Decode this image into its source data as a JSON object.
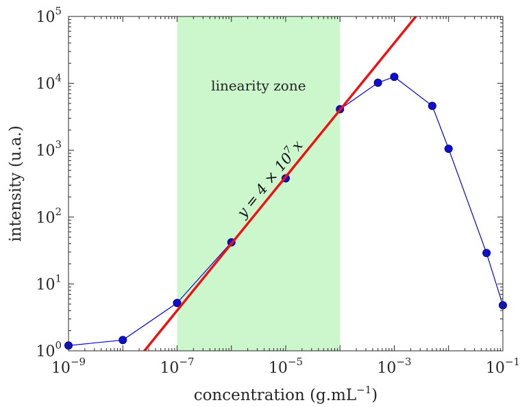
{
  "chart_data": {
    "type": "line",
    "xlabel": "concentration (g.mL",
    "xlabel_sup": "−1",
    "xlabel_end": ")",
    "ylabel": "intensity (u.a.)",
    "xscale": "log",
    "yscale": "log",
    "xlim": [
      1e-09,
      0.1
    ],
    "ylim": [
      1,
      100000
    ],
    "grid": false,
    "x_ticks": [
      {
        "value": 1e-09,
        "base": "10",
        "exp": "−9"
      },
      {
        "value": 1e-07,
        "base": "10",
        "exp": "−7"
      },
      {
        "value": 1e-05,
        "base": "10",
        "exp": "−5"
      },
      {
        "value": 0.001,
        "base": "10",
        "exp": "−3"
      },
      {
        "value": 0.1,
        "base": "10",
        "exp": "−1"
      }
    ],
    "y_ticks": [
      {
        "value": 1,
        "base": "10",
        "exp": "0"
      },
      {
        "value": 10,
        "base": "10",
        "exp": "1"
      },
      {
        "value": 100,
        "base": "10",
        "exp": "2"
      },
      {
        "value": 1000,
        "base": "10",
        "exp": "3"
      },
      {
        "value": 10000,
        "base": "10",
        "exp": "4"
      },
      {
        "value": 100000,
        "base": "10",
        "exp": "5"
      }
    ],
    "shaded_region": {
      "x_range": [
        1e-07,
        0.0001
      ],
      "label": "linearity zone",
      "color": "#ccf7cc"
    },
    "series": [
      {
        "type": "line",
        "color": "#0000dd",
        "marker": "circle",
        "marker_color": "#1010cc",
        "x": [
          1e-09,
          1e-08,
          1e-07,
          1e-06,
          1e-05,
          0.0001,
          0.0005,
          0.001,
          0.005,
          0.01,
          0.05,
          0.1
        ],
        "y": [
          1.2,
          1.45,
          5.2,
          42,
          380,
          4100,
          10200,
          12500,
          4600,
          1050,
          29,
          4.8
        ]
      },
      {
        "type": "fit_line",
        "color": "#ee1111",
        "slope": 40000000,
        "x_range": [
          3e-09,
          0.003
        ],
        "label_base": "y = 4 × 10",
        "label_exp": "7",
        "label_end": "x"
      }
    ]
  }
}
